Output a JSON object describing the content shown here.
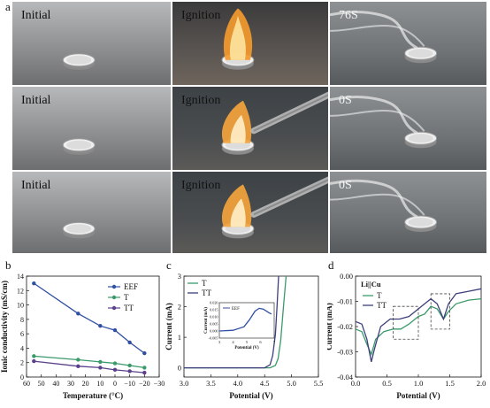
{
  "panels": {
    "a": "a",
    "b": "b",
    "c": "c",
    "d": "d"
  },
  "photos": [
    {
      "label": "Initial",
      "scene": "coin"
    },
    {
      "label": "Ignition",
      "scene": "flame"
    },
    {
      "label": "76S",
      "scene": "smoke"
    },
    {
      "label": "Initial",
      "scene": "coin"
    },
    {
      "label": "Ignition",
      "scene": "torch"
    },
    {
      "label": "0S",
      "scene": "smoke"
    },
    {
      "label": "Initial",
      "scene": "coin"
    },
    {
      "label": "Ignition",
      "scene": "torch"
    },
    {
      "label": "0S",
      "scene": "smoke"
    }
  ],
  "chart_data": [
    {
      "type": "line",
      "xlabel": "Temperature (°C)",
      "ylabel": "Ionic conductivity (mS/cm)",
      "xlim": [
        60,
        -30
      ],
      "ylim": [
        0,
        14
      ],
      "xticks": [
        "60",
        "50",
        "40",
        "30",
        "20",
        "10",
        "0",
        "−10",
        "−20",
        "−30"
      ],
      "yticks": [
        "0",
        "2",
        "4",
        "6",
        "8",
        "10",
        "12",
        "14"
      ],
      "x": [
        55,
        25,
        10,
        0,
        -10,
        -20
      ],
      "series": [
        {
          "name": "EEF",
          "color": "#2f4fa3",
          "values": [
            13.0,
            8.8,
            7.1,
            6.5,
            4.8,
            3.3
          ]
        },
        {
          "name": "T",
          "color": "#3a9a6a",
          "values": [
            2.9,
            2.4,
            2.1,
            1.9,
            1.6,
            1.3
          ]
        },
        {
          "name": "TT",
          "color": "#5a3f8a",
          "values": [
            2.2,
            1.5,
            1.3,
            1.0,
            0.8,
            0.6
          ]
        }
      ]
    },
    {
      "type": "line",
      "xlabel": "Potential (V)",
      "ylabel": "Current (mA)",
      "xlim": [
        3.0,
        5.5
      ],
      "ylim": [
        -0.3,
        3
      ],
      "xticks": [
        "3.0",
        "3.5",
        "4.0",
        "4.5",
        "5.0",
        "5.5"
      ],
      "yticks": [
        "0",
        "1",
        "2",
        "3"
      ],
      "series": [
        {
          "name": "T",
          "color": "#3a9a6a",
          "points": [
            [
              3.0,
              0
            ],
            [
              4.6,
              0
            ],
            [
              4.7,
              0.08
            ],
            [
              4.75,
              0.3
            ],
            [
              4.8,
              0.9
            ],
            [
              4.85,
              2.0
            ],
            [
              4.9,
              3.0
            ]
          ]
        },
        {
          "name": "TT",
          "color": "#3c3f7a",
          "points": [
            [
              3.0,
              0
            ],
            [
              4.5,
              0
            ],
            [
              4.6,
              0.1
            ],
            [
              4.65,
              0.4
            ],
            [
              4.7,
              1.1
            ],
            [
              4.73,
              2.0
            ],
            [
              4.76,
              3.0
            ]
          ]
        }
      ],
      "inset": {
        "label": "EEF",
        "xlabel": "Potential (V)",
        "ylabel": "Current (mA)",
        "xlim": [
          3,
          7
        ],
        "ylim": [
          -0.005,
          0.02
        ],
        "xticks": [
          "3",
          "4",
          "5",
          "6",
          "7"
        ],
        "yticks": [
          "-0.005",
          "0.000",
          "0.005",
          "0.010",
          "0.015",
          "0.020"
        ],
        "points": [
          [
            3.0,
            0.0
          ],
          [
            4.0,
            0.0005
          ],
          [
            4.8,
            0.003
          ],
          [
            5.2,
            0.008
          ],
          [
            5.6,
            0.014
          ],
          [
            5.9,
            0.016
          ],
          [
            6.2,
            0.0155
          ],
          [
            6.6,
            0.013
          ],
          [
            6.8,
            0.012
          ]
        ]
      }
    },
    {
      "type": "line",
      "xlabel": "Potential (V)",
      "ylabel": "Current (mA)",
      "annotation": "Li||Cu",
      "xlim": [
        0,
        2.0
      ],
      "ylim": [
        -0.04,
        0.0
      ],
      "xticks": [
        "0.0",
        "0.5",
        "1.0",
        "1.5",
        "2.0"
      ],
      "yticks": [
        "0.00",
        "-0.01",
        "-0.02",
        "-0.03",
        "-0.04"
      ],
      "series": [
        {
          "name": "T",
          "color": "#3a9a6a",
          "points": [
            [
              0,
              -0.021
            ],
            [
              0.1,
              -0.022
            ],
            [
              0.18,
              -0.027
            ],
            [
              0.25,
              -0.031
            ],
            [
              0.32,
              -0.025
            ],
            [
              0.45,
              -0.022
            ],
            [
              0.6,
              -0.021
            ],
            [
              0.72,
              -0.021
            ],
            [
              0.85,
              -0.019
            ],
            [
              1.0,
              -0.016
            ],
            [
              1.1,
              -0.015
            ],
            [
              1.2,
              -0.012
            ],
            [
              1.3,
              -0.013
            ],
            [
              1.4,
              -0.017
            ],
            [
              1.48,
              -0.014
            ],
            [
              1.6,
              -0.011
            ],
            [
              1.8,
              -0.0095
            ],
            [
              2.0,
              -0.009
            ]
          ]
        },
        {
          "name": "TT",
          "color": "#3c3f7a",
          "points": [
            [
              0,
              -0.018
            ],
            [
              0.1,
              -0.019
            ],
            [
              0.18,
              -0.025
            ],
            [
              0.25,
              -0.034
            ],
            [
              0.3,
              -0.029
            ],
            [
              0.4,
              -0.02
            ],
            [
              0.55,
              -0.017
            ],
            [
              0.7,
              -0.017
            ],
            [
              0.85,
              -0.016
            ],
            [
              1.0,
              -0.013
            ],
            [
              1.1,
              -0.011
            ],
            [
              1.2,
              -0.009
            ],
            [
              1.3,
              -0.011
            ],
            [
              1.4,
              -0.017
            ],
            [
              1.48,
              -0.011
            ],
            [
              1.6,
              -0.007
            ],
            [
              1.8,
              -0.006
            ],
            [
              2.0,
              -0.005
            ]
          ]
        }
      ],
      "highlights": [
        [
          0.6,
          1.0,
          -0.025,
          -0.012
        ],
        [
          1.2,
          1.5,
          -0.021,
          -0.007
        ]
      ]
    }
  ]
}
